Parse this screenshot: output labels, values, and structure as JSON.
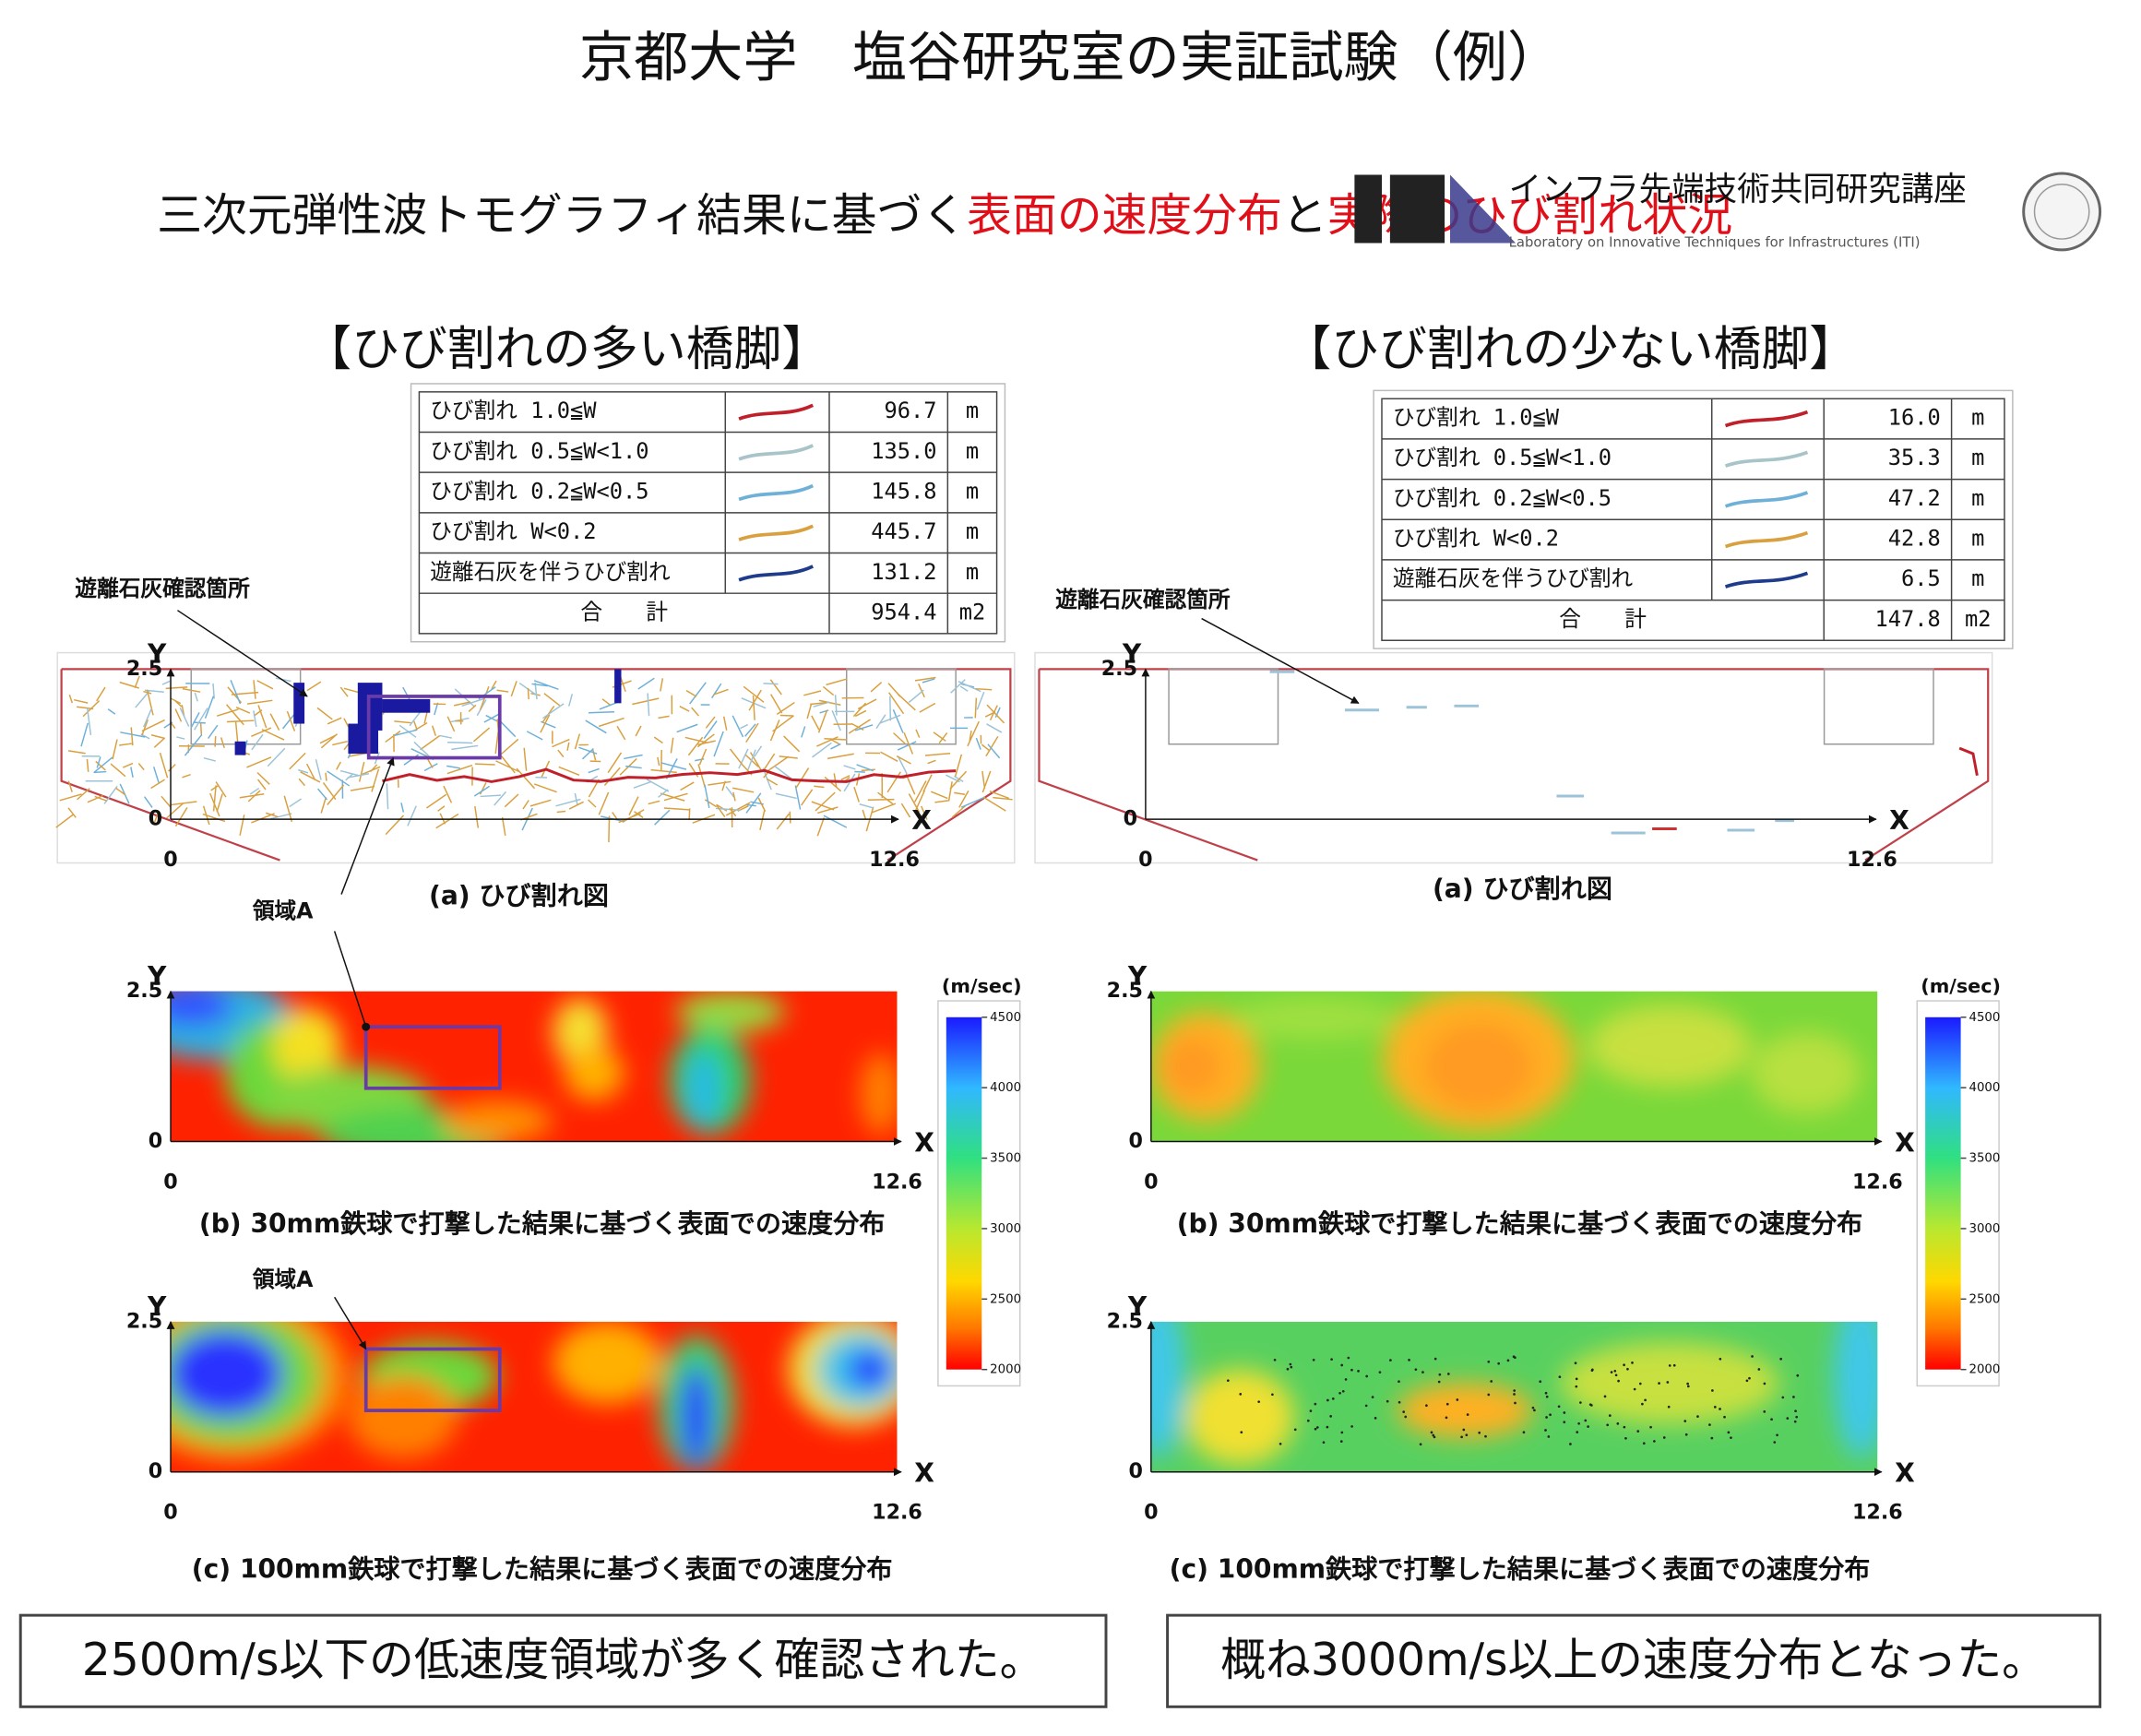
{
  "header": {
    "title": "京都大学　塩谷研究室の実証試験（例）",
    "subtitle": [
      "三次元弾性波トモグラフィ結果に基づく",
      "表面の速度分布",
      "と",
      "実際のひび割れ状況"
    ],
    "lab_name": "インフラ先端技術共同研究講座",
    "lab_name_en": "Laboratory on Innovative Techniques for Infrastructures (ITI)"
  },
  "panels": [
    {
      "heading": "【ひび割れの多い橋脚】",
      "table": {
        "rows": [
          {
            "label": "ひび割れ 1.0≦W",
            "color": "#c0202a",
            "value": "96.7",
            "unit": "m"
          },
          {
            "label": "ひび割れ 0.5≦W<1.0",
            "color": "#a8c4c8",
            "value": "135.0",
            "unit": "m"
          },
          {
            "label": "ひび割れ 0.2≦W<0.5",
            "color": "#6fb0d8",
            "value": "145.8",
            "unit": "m"
          },
          {
            "label": "ひび割れ W<0.2",
            "color": "#d9a040",
            "value": "445.7",
            "unit": "m"
          },
          {
            "label": "遊離石灰を伴うひび割れ",
            "color": "#1f3c8c",
            "value": "131.2",
            "unit": "m"
          }
        ],
        "total": {
          "label": "合　　計",
          "value": "954.4",
          "unit": "m2"
        }
      },
      "annotation": "遊離石灰確認箇所",
      "region_label": "領域A",
      "captions": [
        "(a) ひび割れ図",
        "(b) 30mm鉄球で打撃した結果に基づく表面での速度分布",
        "(c) 100mm鉄球で打撃した結果に基づく表面での速度分布"
      ],
      "colorbar": {
        "title": "(m/sec)",
        "ticks": [
          "4500",
          "4000",
          "3500",
          "3000",
          "2500",
          "2000"
        ]
      },
      "conclusion": "2500m/s以下の低速度領域が多く確認された。"
    },
    {
      "heading": "【ひび割れの少ない橋脚】",
      "table": {
        "rows": [
          {
            "label": "ひび割れ 1.0≦W",
            "color": "#c0202a",
            "value": "16.0",
            "unit": "m"
          },
          {
            "label": "ひび割れ 0.5≦W<1.0",
            "color": "#a8c4c8",
            "value": "35.3",
            "unit": "m"
          },
          {
            "label": "ひび割れ 0.2≦W<0.5",
            "color": "#6fb0d8",
            "value": "47.2",
            "unit": "m"
          },
          {
            "label": "ひび割れ W<0.2",
            "color": "#d9a040",
            "value": "42.8",
            "unit": "m"
          },
          {
            "label": "遊離石灰を伴うひび割れ",
            "color": "#1f3c8c",
            "value": "6.5",
            "unit": "m"
          }
        ],
        "total": {
          "label": "合　　計",
          "value": "147.8",
          "unit": "m2"
        }
      },
      "annotation": "遊離石灰確認箇所",
      "captions": [
        "(a) ひび割れ図",
        "(b) 30mm鉄球で打撃した結果に基づく表面での速度分布",
        "(c) 100mm鉄球で打撃した結果に基づく表面での速度分布"
      ],
      "colorbar": {
        "title": "(m/sec)",
        "ticks": [
          "4500",
          "4000",
          "3500",
          "3000",
          "2500",
          "2000"
        ]
      },
      "conclusion": "概ね3000m/s以上の速度分布となった。"
    }
  ],
  "axes": {
    "y_label": "Y",
    "x_label": "X",
    "y_ticks": [
      "2.5",
      "0"
    ],
    "x_ticks": [
      "0",
      "12.6"
    ]
  }
}
